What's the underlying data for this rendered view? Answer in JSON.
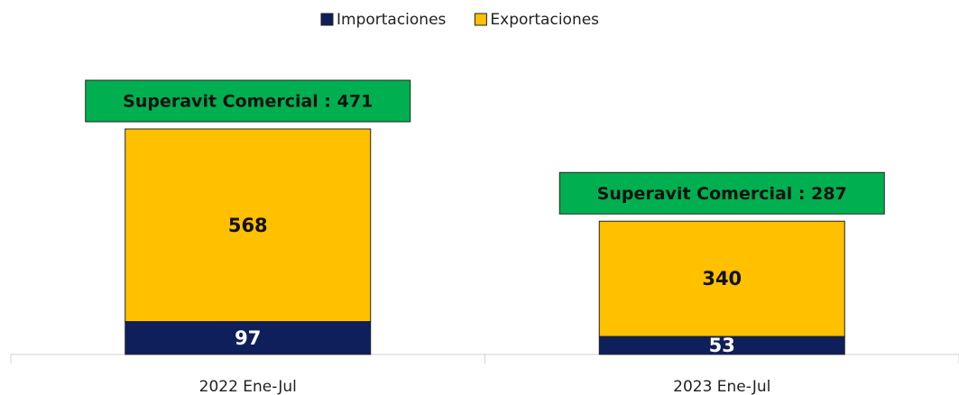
{
  "chart_data": {
    "type": "bar",
    "stacked": true,
    "categories": [
      "2022 Ene-Jul",
      "2023 Ene-Jul"
    ],
    "series": [
      {
        "name": "Importaciones",
        "color": "#0e1f5b",
        "values": [
          97,
          53
        ]
      },
      {
        "name": "Exportaciones",
        "color": "#ffc000",
        "values": [
          568,
          340
        ]
      }
    ],
    "annotations": [
      "Superavit Comercial : 471",
      "Superavit Comercial : 287"
    ],
    "annotation_color": "#00b050",
    "legend": "top"
  }
}
